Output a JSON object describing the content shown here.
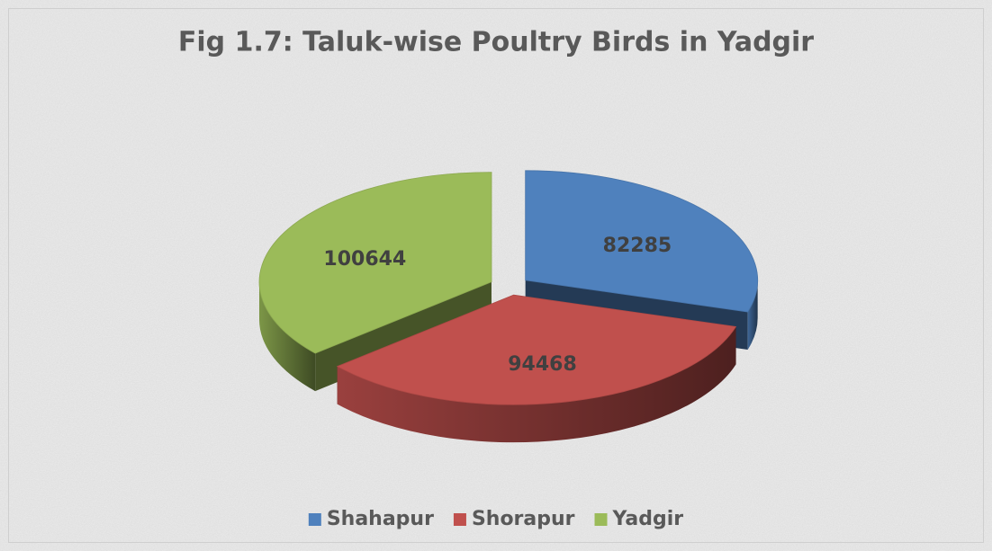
{
  "chart_data": {
    "type": "pie3d",
    "title": "Fig 1.7: Taluk-wise Poultry Birds in Yadgir",
    "categories": [
      "Shahapur",
      "Shorapur",
      "Yadgir"
    ],
    "values": [
      82285,
      94468,
      100644
    ],
    "colors": [
      "#4f81bd",
      "#c0504d",
      "#9bbb59"
    ],
    "legend": "bottom"
  }
}
